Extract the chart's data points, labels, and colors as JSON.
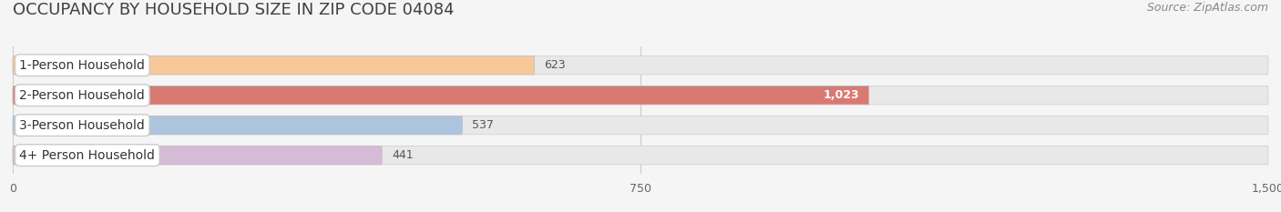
{
  "title": "OCCUPANCY BY HOUSEHOLD SIZE IN ZIP CODE 04084",
  "source": "Source: ZipAtlas.com",
  "categories": [
    "1-Person Household",
    "2-Person Household",
    "3-Person Household",
    "4+ Person Household"
  ],
  "values": [
    623,
    1023,
    537,
    441
  ],
  "bar_colors": [
    "#f7c99a",
    "#d97a72",
    "#adc4de",
    "#d5bbd5"
  ],
  "bar_bg_color": "#e8e8e8",
  "label_box_color": "#ffffff",
  "value_colors": [
    "#666666",
    "#ffffff",
    "#666666",
    "#666666"
  ],
  "xlim": [
    0,
    1500
  ],
  "xticks": [
    0,
    750,
    1500
  ],
  "background_color": "#f5f5f5",
  "title_fontsize": 13,
  "source_fontsize": 9,
  "label_fontsize": 10,
  "value_fontsize": 9,
  "tick_fontsize": 9
}
